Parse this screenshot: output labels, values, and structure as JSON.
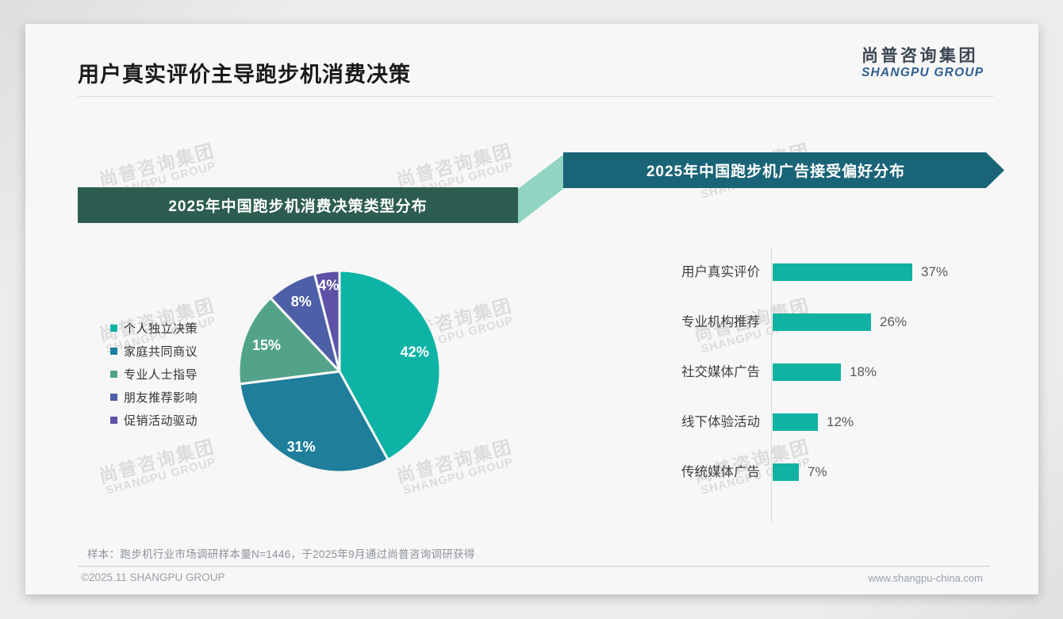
{
  "page": {
    "title": "用户真实评价主导跑步机消费决策",
    "logo": {
      "cn": "尚普咨询集团",
      "en": "SHANGPU GROUP"
    },
    "watermark": {
      "cn": "尚普咨询集团",
      "en": "SHANGPU GROUP"
    },
    "footer": {
      "note": "样本：跑步机行业市场调研样本量N=1446，于2025年9月通过尚普咨询调研获得",
      "copyright": "©2025.11 SHANGPU GROUP",
      "website": "www.shangpu-china.com"
    }
  },
  "colors": {
    "banner_left": "#2d5d50",
    "banner_right": "#1a6477",
    "connector": "#90d4c1",
    "bar": "#10b2a2",
    "logo_cn": "#3d4753",
    "logo_en": "#2e5e92"
  },
  "chart_data": [
    {
      "type": "pie",
      "title": "2025年中国跑步机消费决策类型分布",
      "categories": [
        "个人独立决策",
        "家庭共同商议",
        "专业人士指导",
        "朋友推荐影响",
        "促销活动驱动"
      ],
      "values": [
        42,
        31,
        15,
        8,
        4
      ],
      "unit": "%",
      "colors": [
        "#0db4a6",
        "#1e7e9b",
        "#52a389",
        "#4d5fa6",
        "#5d52a5"
      ],
      "start_angle_deg": 0,
      "direction": "clockwise",
      "legend_position": "left",
      "data_labels": [
        "42%",
        "31%",
        "15%",
        "8%",
        "4%"
      ]
    },
    {
      "type": "bar",
      "title": "2025年中国跑步机广告接受偏好分布",
      "orientation": "horizontal",
      "categories": [
        "用户真实评价",
        "专业机构推荐",
        "社交媒体广告",
        "线下体验活动",
        "传统媒体广告"
      ],
      "values": [
        37,
        26,
        18,
        12,
        7
      ],
      "unit": "%",
      "bar_color": "#10b2a2",
      "xlim": [
        0,
        40
      ],
      "grid": false,
      "data_labels": [
        "37%",
        "26%",
        "18%",
        "12%",
        "7%"
      ]
    }
  ]
}
